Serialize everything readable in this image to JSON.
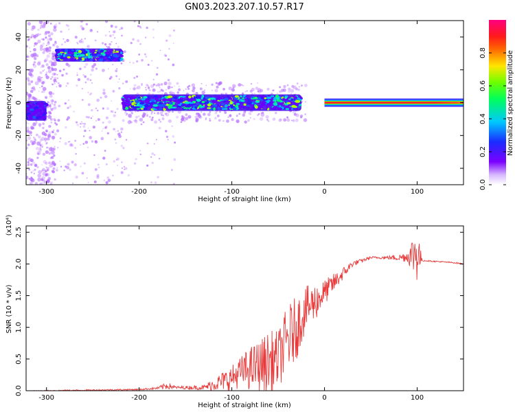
{
  "title": "GN03.2023.207.10.57.R17",
  "colors": {
    "snr_line": "#e83a3a",
    "noise": "#b46cff",
    "axis": "#000000"
  },
  "chart_data": [
    {
      "type": "heatmap",
      "title": "GN03.2023.207.10.57.R17",
      "xlabel": "Height of straight line (km)",
      "ylabel": "Frequency (Hz)",
      "xlim": [
        -322,
        150
      ],
      "ylim": [
        -50,
        50
      ],
      "x_ticks": [
        -300,
        -200,
        -100,
        0,
        100
      ],
      "x_tick_labels": [
        "-300",
        "-200",
        "-100",
        "0",
        "100"
      ],
      "y_ticks": [
        -40,
        -20,
        0,
        20,
        40
      ],
      "y_tick_labels": [
        "-40",
        "-20",
        "0",
        "20",
        "40"
      ],
      "colorbar": {
        "label": "Normalized spectral amplitude",
        "range": [
          0,
          1
        ],
        "ticks": [
          0,
          0.2,
          0.4,
          0.6,
          0.8
        ],
        "tick_labels": [
          "0.0",
          "0.2",
          "0.4",
          "0.6",
          "0.8"
        ],
        "colormap": "rainbow (purple-blue-cyan-green-yellow-red-magenta)"
      },
      "features": [
        {
          "name": "early band",
          "x_range": [
            -322,
            -300
          ],
          "freq_center": -5,
          "freq_halfwidth": 6,
          "amplitude": 0.1
        },
        {
          "name": "upper band",
          "x_range": [
            -290,
            -218
          ],
          "freq_center": 29,
          "freq_halfwidth": 4,
          "amplitude": 0.3
        },
        {
          "name": "main trace",
          "x_range": [
            -218,
            -25
          ],
          "freq_center": 0,
          "freq_halfwidth": 5,
          "amplitude": 0.3
        },
        {
          "name": "carrier line",
          "x_range": [
            0,
            150
          ],
          "freq_center": 0,
          "freq_halfwidth": 1.5,
          "amplitude": 1.0
        }
      ]
    },
    {
      "type": "line",
      "xlabel": "Height of straight line (km)",
      "ylabel": "SNR (10 * v/v)",
      "y_multiplier": "(x10⁴)",
      "xlim": [
        -322,
        150
      ],
      "ylim": [
        0,
        2.6
      ],
      "x_ticks": [
        -300,
        -200,
        -100,
        0,
        100
      ],
      "x_tick_labels": [
        "-300",
        "-200",
        "-100",
        "0",
        "100"
      ],
      "y_ticks": [
        0,
        0.5,
        1.0,
        1.5,
        2.0,
        2.5
      ],
      "y_tick_labels": [
        "0.0",
        "0.5",
        "1.0",
        "1.5",
        "2.0",
        "2.5"
      ],
      "series": [
        {
          "x": [
            -322,
            -300,
            -250,
            -200,
            -180,
            -170,
            -160,
            -130,
            -120,
            -110,
            -100,
            -90,
            -80,
            -70,
            -60,
            -50,
            -40,
            -30,
            -20,
            -10,
            0,
            10,
            20,
            30,
            40,
            50,
            60,
            70,
            80,
            90,
            95,
            100,
            105,
            110,
            120,
            130,
            140,
            150
          ],
          "values": [
            0.0,
            0.0,
            0.01,
            0.02,
            0.04,
            0.08,
            0.05,
            0.05,
            0.1,
            0.15,
            0.2,
            0.3,
            0.35,
            0.4,
            0.45,
            0.5,
            0.8,
            1.0,
            1.3,
            1.4,
            1.55,
            1.7,
            1.85,
            2.0,
            2.05,
            2.1,
            2.1,
            2.1,
            2.1,
            2.12,
            2.15,
            2.2,
            2.06,
            2.05,
            2.04,
            2.03,
            2.02,
            2.0
          ],
          "spread": [
            0.0,
            0.01,
            0.01,
            0.01,
            0.02,
            0.06,
            0.02,
            0.04,
            0.1,
            0.15,
            0.2,
            0.25,
            0.35,
            0.4,
            0.5,
            0.45,
            0.55,
            0.5,
            0.35,
            0.3,
            0.2,
            0.15,
            0.1,
            0.05,
            0.03,
            0.02,
            0.02,
            0.03,
            0.05,
            0.1,
            0.3,
            0.5,
            0.02,
            0.01,
            0.01,
            0.01,
            0.01,
            0.01
          ]
        }
      ]
    }
  ]
}
